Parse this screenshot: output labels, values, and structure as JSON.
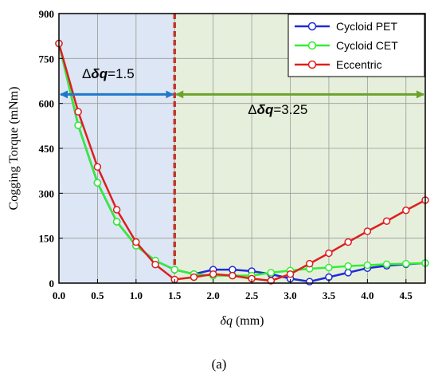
{
  "chart_data": {
    "type": "line",
    "xlabel_symbol": "δq",
    "xlabel_unit": " (mm)",
    "ylabel": "Cogging Torque (mNm)",
    "xlim": [
      0,
      4.75
    ],
    "ylim": [
      0,
      900
    ],
    "xticks": [
      0.0,
      0.5,
      1.0,
      1.5,
      2.0,
      2.5,
      3.0,
      3.5,
      4.0,
      4.5
    ],
    "xtick_labels": [
      "0.0",
      "0.5",
      "1.0",
      "1.5",
      "2.0",
      "2.5",
      "3.0",
      "3.5",
      "4.0",
      "4.5"
    ],
    "yticks": [
      0,
      150,
      300,
      450,
      600,
      750,
      900
    ],
    "ytick_labels": [
      "0",
      "150",
      "300",
      "450",
      "600",
      "750",
      "900"
    ],
    "grid": true,
    "legend_position": "top-right",
    "x": [
      0,
      0.25,
      0.5,
      0.75,
      1.0,
      1.25,
      1.5,
      1.75,
      2.0,
      2.25,
      2.5,
      2.75,
      3.0,
      3.25,
      3.5,
      3.75,
      4.0,
      4.25,
      4.5,
      4.75
    ],
    "series": [
      {
        "name": "Cycloid PET",
        "color": "#1f2bd6",
        "values": [
          800,
          527,
          335,
          205,
          125,
          75,
          45,
          30,
          45,
          45,
          40,
          30,
          15,
          5,
          20,
          35,
          50,
          58,
          63,
          67
        ]
      },
      {
        "name": "Cycloid CET",
        "color": "#33ee33",
        "values": [
          800,
          527,
          335,
          205,
          125,
          75,
          45,
          30,
          25,
          25,
          25,
          35,
          42,
          48,
          52,
          57,
          60,
          63,
          65,
          67
        ]
      },
      {
        "name": "Eccentric",
        "color": "#dd1f1f",
        "values": [
          800,
          572,
          388,
          245,
          137,
          62,
          12,
          20,
          30,
          25,
          15,
          8,
          30,
          65,
          100,
          137,
          173,
          207,
          243,
          277
        ]
      }
    ],
    "regions": [
      {
        "x_range": [
          0,
          1.5
        ],
        "fill": "#dce6f5"
      },
      {
        "x_range": [
          1.5,
          4.75
        ],
        "fill": "#e6efdc"
      }
    ],
    "divider_x": 1.5,
    "annotations": [
      {
        "prefix": "Δ",
        "symbol": "δq",
        "suffix": "=1.5",
        "arrow_x": [
          0,
          1.5
        ],
        "arrow_y": 630,
        "color": "#1f78c8"
      },
      {
        "prefix": "Δ",
        "symbol": "δq",
        "suffix": "=3.25",
        "arrow_x": [
          1.5,
          4.75
        ],
        "arrow_y": 630,
        "color": "#6ba32a"
      }
    ]
  },
  "panel_label": "(a)"
}
